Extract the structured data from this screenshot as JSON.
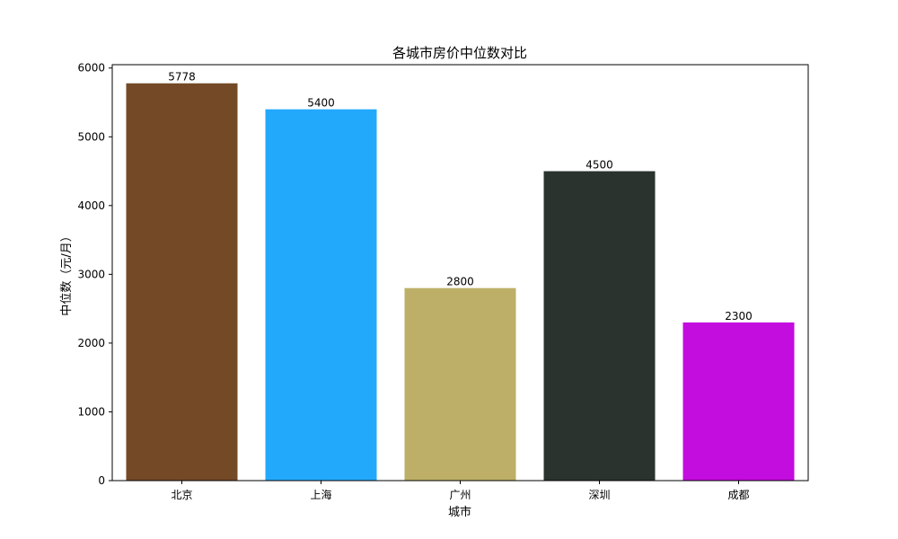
{
  "chart_data": {
    "type": "bar",
    "title": "各城市房价中位数对比",
    "xlabel": "城市",
    "ylabel": "中位数（元/月）",
    "categories": [
      "北京",
      "上海",
      "广州",
      "深圳",
      "成都"
    ],
    "values": [
      5778,
      5400,
      2800,
      4500,
      2300
    ],
    "value_labels": [
      "5778",
      "5400",
      "2800",
      "4500",
      "2300"
    ],
    "colors": [
      "#744a26",
      "#23a9fb",
      "#bdaf67",
      "#2b332e",
      "#c30cde"
    ],
    "ylim": [
      0,
      6048.9
    ],
    "yticks": [
      0,
      1000,
      2000,
      3000,
      4000,
      5000,
      6000
    ],
    "ytick_labels": [
      "0",
      "1000",
      "2000",
      "3000",
      "4000",
      "5000",
      "6000"
    ],
    "grid": false,
    "legend": "none"
  }
}
